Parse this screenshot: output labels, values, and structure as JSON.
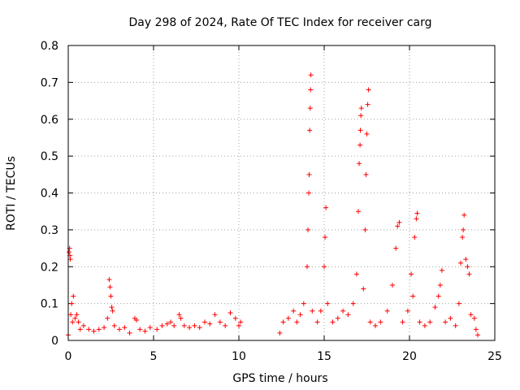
{
  "chart_data": {
    "type": "scatter",
    "title": "Day 298 of 2024, Rate Of TEC Index for receiver carg",
    "xlabel": "GPS time / hours",
    "ylabel": "ROTI / TECUs",
    "xlim": [
      0,
      25
    ],
    "ylim": [
      0,
      0.8
    ],
    "xticks": [
      "0",
      "5",
      "10",
      "15",
      "20",
      "25"
    ],
    "yticks": [
      "0",
      "0.1",
      "0.2",
      "0.3",
      "0.4",
      "0.5",
      "0.6",
      "0.7",
      "0.8"
    ],
    "grid": true,
    "marker": "+",
    "color": "#ff0000",
    "series": [
      {
        "points": [
          [
            0.0,
            0.015
          ],
          [
            0.05,
            0.24
          ],
          [
            0.08,
            0.25
          ],
          [
            0.1,
            0.23
          ],
          [
            0.12,
            0.22
          ],
          [
            0.15,
            0.07
          ],
          [
            0.2,
            0.1
          ],
          [
            0.25,
            0.05
          ],
          [
            0.3,
            0.12
          ],
          [
            0.4,
            0.06
          ],
          [
            0.5,
            0.07
          ],
          [
            0.6,
            0.05
          ],
          [
            0.7,
            0.03
          ],
          [
            0.9,
            0.04
          ],
          [
            1.2,
            0.03
          ],
          [
            1.5,
            0.025
          ],
          [
            1.8,
            0.03
          ],
          [
            2.1,
            0.035
          ],
          [
            2.3,
            0.06
          ],
          [
            2.4,
            0.165
          ],
          [
            2.45,
            0.145
          ],
          [
            2.5,
            0.12
          ],
          [
            2.55,
            0.09
          ],
          [
            2.6,
            0.08
          ],
          [
            2.7,
            0.04
          ],
          [
            3.0,
            0.03
          ],
          [
            3.3,
            0.035
          ],
          [
            3.6,
            0.02
          ],
          [
            3.9,
            0.06
          ],
          [
            4.0,
            0.055
          ],
          [
            4.2,
            0.03
          ],
          [
            4.5,
            0.025
          ],
          [
            4.8,
            0.035
          ],
          [
            5.2,
            0.03
          ],
          [
            5.5,
            0.04
          ],
          [
            5.8,
            0.045
          ],
          [
            6.0,
            0.05
          ],
          [
            6.2,
            0.04
          ],
          [
            6.5,
            0.07
          ],
          [
            6.6,
            0.06
          ],
          [
            6.8,
            0.04
          ],
          [
            7.1,
            0.035
          ],
          [
            7.4,
            0.04
          ],
          [
            7.7,
            0.035
          ],
          [
            8.0,
            0.05
          ],
          [
            8.3,
            0.045
          ],
          [
            8.6,
            0.07
          ],
          [
            8.9,
            0.05
          ],
          [
            9.2,
            0.04
          ],
          [
            9.5,
            0.075
          ],
          [
            9.8,
            0.06
          ],
          [
            10.0,
            0.04
          ],
          [
            10.1,
            0.05
          ],
          [
            12.4,
            0.02
          ],
          [
            12.6,
            0.05
          ],
          [
            12.9,
            0.06
          ],
          [
            13.2,
            0.08
          ],
          [
            13.4,
            0.05
          ],
          [
            13.6,
            0.07
          ],
          [
            13.8,
            0.1
          ],
          [
            14.0,
            0.2
          ],
          [
            14.05,
            0.3
          ],
          [
            14.1,
            0.4
          ],
          [
            14.12,
            0.45
          ],
          [
            14.15,
            0.57
          ],
          [
            14.18,
            0.63
          ],
          [
            14.2,
            0.68
          ],
          [
            14.22,
            0.72
          ],
          [
            14.3,
            0.08
          ],
          [
            14.6,
            0.05
          ],
          [
            14.8,
            0.08
          ],
          [
            15.0,
            0.2
          ],
          [
            15.05,
            0.28
          ],
          [
            15.1,
            0.36
          ],
          [
            15.2,
            0.1
          ],
          [
            15.5,
            0.05
          ],
          [
            15.8,
            0.06
          ],
          [
            16.1,
            0.08
          ],
          [
            16.4,
            0.07
          ],
          [
            16.7,
            0.1
          ],
          [
            16.9,
            0.18
          ],
          [
            17.0,
            0.35
          ],
          [
            17.05,
            0.48
          ],
          [
            17.1,
            0.53
          ],
          [
            17.12,
            0.57
          ],
          [
            17.15,
            0.61
          ],
          [
            17.18,
            0.63
          ],
          [
            17.3,
            0.14
          ],
          [
            17.4,
            0.3
          ],
          [
            17.45,
            0.45
          ],
          [
            17.5,
            0.56
          ],
          [
            17.55,
            0.64
          ],
          [
            17.6,
            0.68
          ],
          [
            17.7,
            0.05
          ],
          [
            18.0,
            0.04
          ],
          [
            18.3,
            0.05
          ],
          [
            18.7,
            0.08
          ],
          [
            19.0,
            0.15
          ],
          [
            19.2,
            0.25
          ],
          [
            19.3,
            0.31
          ],
          [
            19.4,
            0.32
          ],
          [
            19.6,
            0.05
          ],
          [
            19.9,
            0.08
          ],
          [
            20.1,
            0.18
          ],
          [
            20.2,
            0.12
          ],
          [
            20.3,
            0.28
          ],
          [
            20.4,
            0.33
          ],
          [
            20.45,
            0.345
          ],
          [
            20.6,
            0.05
          ],
          [
            20.9,
            0.04
          ],
          [
            21.2,
            0.05
          ],
          [
            21.5,
            0.09
          ],
          [
            21.7,
            0.12
          ],
          [
            21.8,
            0.15
          ],
          [
            21.9,
            0.19
          ],
          [
            22.1,
            0.05
          ],
          [
            22.4,
            0.06
          ],
          [
            22.7,
            0.04
          ],
          [
            22.9,
            0.1
          ],
          [
            23.0,
            0.21
          ],
          [
            23.1,
            0.28
          ],
          [
            23.15,
            0.3
          ],
          [
            23.2,
            0.34
          ],
          [
            23.3,
            0.22
          ],
          [
            23.4,
            0.2
          ],
          [
            23.5,
            0.18
          ],
          [
            23.6,
            0.07
          ],
          [
            23.8,
            0.06
          ],
          [
            23.9,
            0.03
          ],
          [
            24.0,
            0.015
          ]
        ]
      }
    ]
  }
}
